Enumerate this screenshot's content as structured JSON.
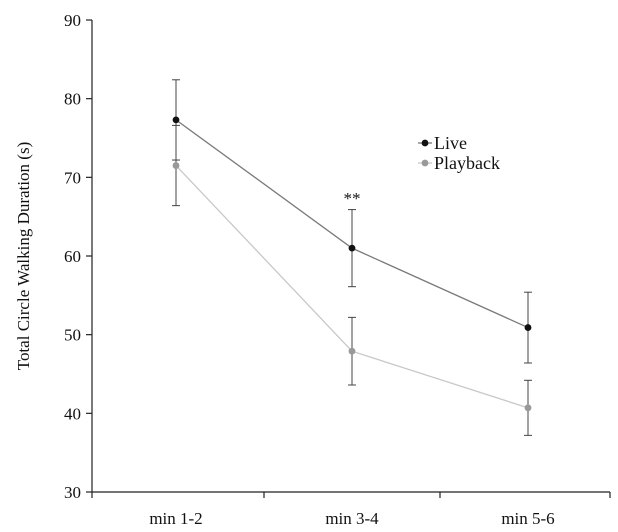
{
  "chart_data": {
    "type": "line",
    "title": "",
    "xlabel": "",
    "ylabel": "Total Circle Walking Duration (s)",
    "categories": [
      "min 1-2",
      "min 3-4",
      "min 5-6"
    ],
    "ylim": [
      30,
      90
    ],
    "yticks": [
      30,
      40,
      50,
      60,
      70,
      80,
      90
    ],
    "grid": false,
    "legend_position": "top-right",
    "series": [
      {
        "name": "Live",
        "color": "#7a7a7a",
        "marker_color": "#111111",
        "values": [
          77.3,
          61.0,
          50.9
        ],
        "error": [
          5.1,
          4.9,
          4.5
        ]
      },
      {
        "name": "Playback",
        "color": "#c8c8c8",
        "marker_color": "#999999",
        "values": [
          71.5,
          47.9,
          40.7
        ],
        "error": [
          5.1,
          4.3,
          3.5
        ]
      }
    ],
    "annotations": [
      {
        "text": "**",
        "category": "min 3-4",
        "y": 67.5
      }
    ]
  }
}
